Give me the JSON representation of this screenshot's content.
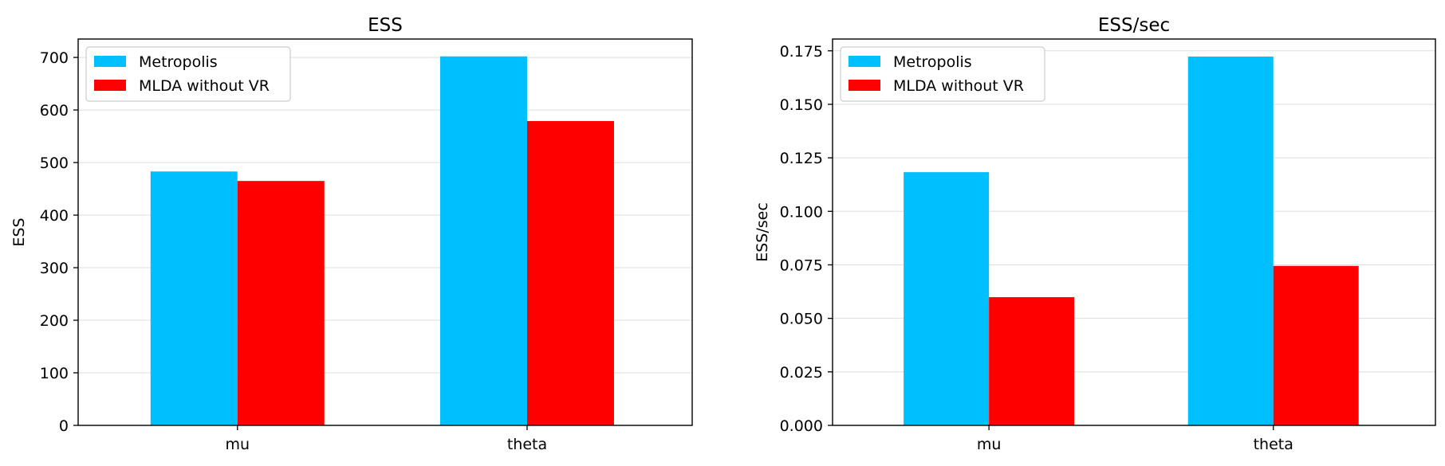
{
  "chart_data": [
    {
      "type": "bar",
      "title": "ESS",
      "xlabel": "",
      "ylabel": "ESS",
      "categories": [
        "mu",
        "theta"
      ],
      "series": [
        {
          "name": "Metropolis",
          "color": "#00bfff",
          "values": [
            483,
            702
          ]
        },
        {
          "name": "MLDA without VR",
          "color": "#ff0000",
          "values": [
            465,
            579
          ]
        }
      ],
      "ylim": [
        0,
        735
      ],
      "yticks": [
        0,
        100,
        200,
        300,
        400,
        500,
        600,
        700
      ],
      "ytick_labels": [
        "0",
        "100",
        "200",
        "300",
        "400",
        "500",
        "600",
        "700"
      ],
      "grid": "y",
      "legend": "top-left"
    },
    {
      "type": "bar",
      "title": "ESS/sec",
      "xlabel": "",
      "ylabel": "ESS/sec",
      "categories": [
        "mu",
        "theta"
      ],
      "series": [
        {
          "name": "Metropolis",
          "color": "#00bfff",
          "values": [
            0.1183,
            0.1723
          ]
        },
        {
          "name": "MLDA without VR",
          "color": "#ff0000",
          "values": [
            0.0599,
            0.0745
          ]
        }
      ],
      "ylim": [
        0,
        0.1805
      ],
      "yticks": [
        0,
        0.025,
        0.05,
        0.075,
        0.1,
        0.125,
        0.15,
        0.175
      ],
      "ytick_labels": [
        "0.000",
        "0.025",
        "0.050",
        "0.075",
        "0.100",
        "0.125",
        "0.150",
        "0.175"
      ],
      "grid": "y",
      "legend": "top-left"
    }
  ]
}
